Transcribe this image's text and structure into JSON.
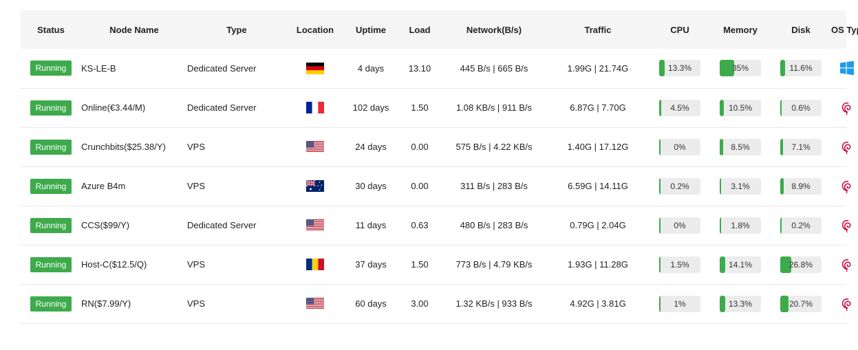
{
  "headers": {
    "status": "Status",
    "node_name": "Node Name",
    "type": "Type",
    "location": "Location",
    "uptime": "Uptime",
    "load": "Load",
    "network": "Network(B/s)",
    "traffic": "Traffic",
    "cpu": "CPU",
    "memory": "Memory",
    "disk": "Disk",
    "os_type": "OS Type"
  },
  "rows": [
    {
      "status": "Running",
      "name": "KS-LE-B",
      "type": "Dedicated Server",
      "flag": "de",
      "uptime": "4 days",
      "load": "13.10",
      "network": "445 B/s | 665 B/s",
      "traffic": "1.99G | 21.74G",
      "cpu": "13.3%",
      "cpu_pct": 13.3,
      "memory": "35%",
      "memory_pct": 35,
      "disk": "11.6%",
      "disk_pct": 11.6,
      "os": "windows-icon"
    },
    {
      "status": "Running",
      "name": "Online(€3.44/M)",
      "type": "Dedicated Server",
      "flag": "fr",
      "uptime": "102 days",
      "load": "1.50",
      "network": "1.08 KB/s | 911 B/s",
      "traffic": "6.87G | 7.70G",
      "cpu": "4.5%",
      "cpu_pct": 4.5,
      "memory": "10.5%",
      "memory_pct": 10.5,
      "disk": "0.6%",
      "disk_pct": 0.6,
      "os": "debian-icon"
    },
    {
      "status": "Running",
      "name": "Crunchbits($25.38/Y)",
      "type": "VPS",
      "flag": "us",
      "uptime": "24 days",
      "load": "0.00",
      "network": "575 B/s | 4.22 KB/s",
      "traffic": "1.40G | 17.12G",
      "cpu": "0%",
      "cpu_pct": 0,
      "memory": "8.5%",
      "memory_pct": 8.5,
      "disk": "7.1%",
      "disk_pct": 7.1,
      "os": "debian-icon"
    },
    {
      "status": "Running",
      "name": "Azure B4m",
      "type": "VPS",
      "flag": "au",
      "uptime": "30 days",
      "load": "0.00",
      "network": "311 B/s | 283 B/s",
      "traffic": "6.59G | 14.11G",
      "cpu": "0.2%",
      "cpu_pct": 0.2,
      "memory": "3.1%",
      "memory_pct": 3.1,
      "disk": "8.9%",
      "disk_pct": 8.9,
      "os": "debian-icon"
    },
    {
      "status": "Running",
      "name": "CCS($99/Y)",
      "type": "Dedicated Server",
      "flag": "us",
      "uptime": "11 days",
      "load": "0.63",
      "network": "480 B/s | 283 B/s",
      "traffic": "0.79G | 2.04G",
      "cpu": "0%",
      "cpu_pct": 0,
      "memory": "1.8%",
      "memory_pct": 1.8,
      "disk": "0.2%",
      "disk_pct": 0.2,
      "os": "debian-icon"
    },
    {
      "status": "Running",
      "name": "Host-C($12.5/Q)",
      "type": "VPS",
      "flag": "ro",
      "uptime": "37 days",
      "load": "1.50",
      "network": "773 B/s | 4.79 KB/s",
      "traffic": "1.93G | 11.28G",
      "cpu": "1.5%",
      "cpu_pct": 1.5,
      "memory": "14.1%",
      "memory_pct": 14.1,
      "disk": "26.8%",
      "disk_pct": 26.8,
      "os": "debian-icon"
    },
    {
      "status": "Running",
      "name": "RN($7.99/Y)",
      "type": "VPS",
      "flag": "us",
      "uptime": "60 days",
      "load": "3.00",
      "network": "1.32 KB/s | 933 B/s",
      "traffic": "4.92G | 3.81G",
      "cpu": "1%",
      "cpu_pct": 1,
      "memory": "13.3%",
      "memory_pct": 13.3,
      "disk": "20.7%",
      "disk_pct": 20.7,
      "os": "debian-icon"
    }
  ],
  "colors": {
    "running": "#3daa4b",
    "bar_fill": "#3daa4b",
    "bar_bg": "#ececec",
    "header_bg": "#f5f5f5",
    "windows": "#1e9be9",
    "debian": "#c70036"
  }
}
